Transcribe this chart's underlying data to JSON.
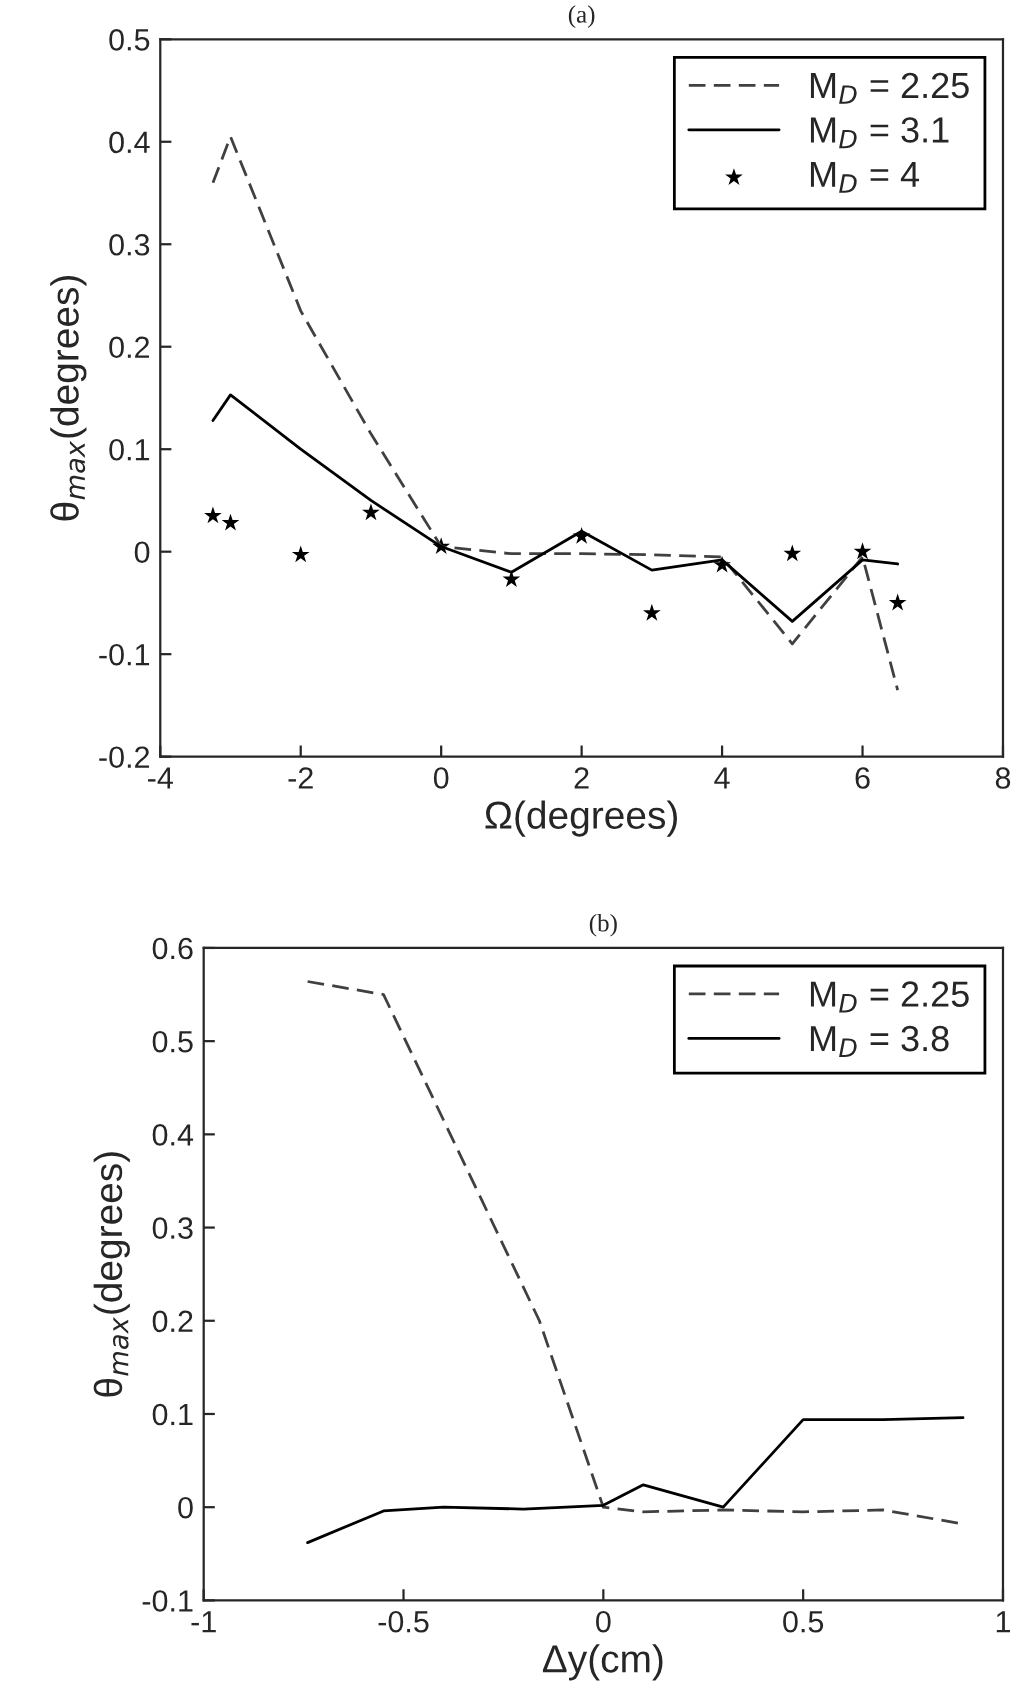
{
  "chart_data": [
    {
      "type": "line",
      "title": "(a)",
      "xlabel": "Ω(degrees)",
      "ylabel": "θ$_{max}$(degrees)",
      "xlim": [
        -4,
        8
      ],
      "xticks": [
        -4,
        -2,
        0,
        2,
        4,
        6,
        8
      ],
      "ylim": [
        -0.2,
        0.5
      ],
      "yticks": [
        -0.2,
        -0.1,
        0,
        0.1,
        0.2,
        0.3,
        0.4,
        0.5
      ],
      "legend": "top right",
      "grid": false,
      "series": [
        {
          "name": "M$_{D}$ = 2.25",
          "line_style": "dashed",
          "color": "#404040",
          "x": [
            -3.25,
            -3,
            -2,
            -1,
            0,
            1,
            2,
            3,
            4,
            5,
            6,
            6.5
          ],
          "values": [
            0.36,
            0.405,
            0.235,
            0.115,
            0.005,
            -0.002,
            -0.002,
            -0.003,
            -0.005,
            -0.09,
            -0.005,
            -0.135
          ]
        },
        {
          "name": "M$_{D}$ = 3.1",
          "line_style": "solid",
          "color": "#000000",
          "x": [
            -3.25,
            -3,
            -2,
            -1,
            0,
            1,
            2,
            3,
            4,
            5,
            6,
            6.5
          ],
          "values": [
            0.128,
            0.153,
            0.1,
            0.05,
            0.005,
            -0.02,
            0.02,
            -0.018,
            -0.008,
            -0.068,
            -0.008,
            -0.012
          ]
        },
        {
          "name": "M$_{D}$ = 4",
          "type": "scatter",
          "marker": "star",
          "color": "#000000",
          "x": [
            -3.25,
            -3,
            -2,
            -1,
            0,
            1,
            2,
            3,
            4,
            5,
            6,
            6.5
          ],
          "values": [
            0.035,
            0.028,
            -0.003,
            0.038,
            0.005,
            -0.027,
            0.015,
            -0.06,
            -0.013,
            -0.002,
            0.0,
            -0.05
          ]
        }
      ]
    },
    {
      "type": "line",
      "title": "(b)",
      "xlabel": "Δy(cm)",
      "ylabel": "θ$_{max}$(degrees)",
      "xlim": [
        -1,
        1
      ],
      "xticks": [
        -1,
        -0.5,
        0,
        0.5,
        1
      ],
      "ylim": [
        -0.1,
        0.6
      ],
      "yticks": [
        -0.1,
        0,
        0.1,
        0.2,
        0.3,
        0.4,
        0.5,
        0.6
      ],
      "legend": "top right",
      "grid": false,
      "series": [
        {
          "name": "M$_{D}$ = 2.25",
          "line_style": "dashed",
          "color": "#404040",
          "x": [
            -0.74,
            -0.55,
            -0.16,
            0,
            0.1,
            0.3,
            0.5,
            0.7,
            0.9
          ],
          "values": [
            0.564,
            0.55,
            0.2,
            0.0,
            -0.005,
            -0.003,
            -0.005,
            -0.003,
            -0.018
          ]
        },
        {
          "name": "M$_{D}$ = 3.8",
          "line_style": "solid",
          "color": "#000000",
          "x": [
            -0.74,
            -0.55,
            -0.4,
            -0.2,
            0,
            0.1,
            0.3,
            0.5,
            0.7,
            0.9
          ],
          "values": [
            -0.038,
            -0.004,
            0.0,
            -0.002,
            0.002,
            0.024,
            0.0,
            0.094,
            0.094,
            0.096
          ]
        }
      ]
    }
  ]
}
